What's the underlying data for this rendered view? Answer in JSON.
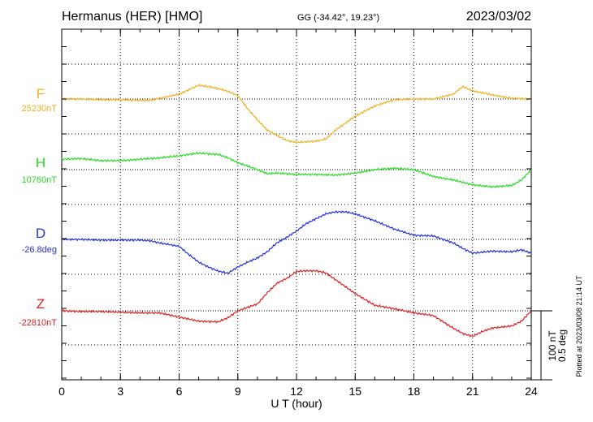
{
  "header": {
    "station": "Hermanus (HER)  [HMO]",
    "coords": "GG (-34.42°,  19.23°)",
    "date": "2023/03/02"
  },
  "side_note": "Plotted at 2023/03/08 21:14 UT",
  "scale_bar": {
    "value_nt": "100 nT",
    "value_deg": "0.5 deg"
  },
  "chart_data": {
    "type": "line",
    "title": "Hermanus (HER)  [HMO]",
    "xlabel": "U T (hour)",
    "xlim": [
      0,
      24
    ],
    "xticks": [
      "0",
      "3",
      "6",
      "9",
      "12",
      "15",
      "18",
      "21",
      "24"
    ],
    "grid": true,
    "scale": {
      "nt_per_bar": 100,
      "deg_per_bar": 0.5
    },
    "series": [
      {
        "name": "F",
        "baseline_label": "25230nT",
        "color": "#f0b020",
        "baseline_units": 0,
        "offset_units": 0,
        "points": [
          [
            0,
            0
          ],
          [
            1,
            0
          ],
          [
            2,
            1
          ],
          [
            3,
            1
          ],
          [
            4,
            2
          ],
          [
            4.5,
            2
          ],
          [
            5,
            -1
          ],
          [
            6,
            -7
          ],
          [
            7,
            -20
          ],
          [
            7.5,
            -18
          ],
          [
            8,
            -15
          ],
          [
            8.5,
            -11
          ],
          [
            9,
            -5
          ],
          [
            9.5,
            14
          ],
          [
            10,
            30
          ],
          [
            10.5,
            45
          ],
          [
            11,
            53
          ],
          [
            11.5,
            60
          ],
          [
            12,
            63
          ],
          [
            12.5,
            62
          ],
          [
            13,
            61
          ],
          [
            13.5,
            58
          ],
          [
            14,
            45
          ],
          [
            15,
            25
          ],
          [
            16,
            10
          ],
          [
            17,
            1
          ],
          [
            18,
            0
          ],
          [
            19,
            0
          ],
          [
            20,
            -7
          ],
          [
            20.5,
            -18
          ],
          [
            21,
            -12
          ],
          [
            22,
            -6
          ],
          [
            23,
            -1
          ],
          [
            24,
            0
          ]
        ]
      },
      {
        "name": "H",
        "baseline_label": "10760nT",
        "color": "#22dd22",
        "baseline_units": 0,
        "offset_units": 0,
        "points": [
          [
            0,
            -15
          ],
          [
            1,
            -16
          ],
          [
            2,
            -13
          ],
          [
            3,
            -13
          ],
          [
            4,
            -15
          ],
          [
            5,
            -17
          ],
          [
            6,
            -20
          ],
          [
            7,
            -24
          ],
          [
            8,
            -22
          ],
          [
            8.5,
            -17
          ],
          [
            9,
            -10
          ],
          [
            10,
            0
          ],
          [
            10.5,
            6
          ],
          [
            11,
            5
          ],
          [
            12,
            7
          ],
          [
            13,
            7
          ],
          [
            14,
            8
          ],
          [
            15,
            5
          ],
          [
            16,
            0
          ],
          [
            17,
            -2
          ],
          [
            18,
            0
          ],
          [
            19,
            10
          ],
          [
            20,
            15
          ],
          [
            21,
            22
          ],
          [
            22,
            25
          ],
          [
            23,
            23
          ],
          [
            23.5,
            15
          ],
          [
            24,
            0
          ]
        ]
      },
      {
        "name": "D",
        "baseline_label": "-26.8deg",
        "color": "#2233dd",
        "baseline_units": 0,
        "offset_units": 0,
        "points": [
          [
            0,
            0
          ],
          [
            1,
            0
          ],
          [
            2,
            1
          ],
          [
            3,
            1
          ],
          [
            4,
            1
          ],
          [
            4.5,
            2
          ],
          [
            5,
            5
          ],
          [
            6,
            10
          ],
          [
            6.5,
            22
          ],
          [
            7,
            33
          ],
          [
            7.5,
            40
          ],
          [
            8,
            46
          ],
          [
            8.5,
            49
          ],
          [
            9,
            40
          ],
          [
            9.5,
            33
          ],
          [
            10,
            27
          ],
          [
            10.5,
            18
          ],
          [
            11,
            5
          ],
          [
            11.5,
            -3
          ],
          [
            12,
            -12
          ],
          [
            12.5,
            -23
          ],
          [
            13,
            -30
          ],
          [
            13.5,
            -37
          ],
          [
            14,
            -40
          ],
          [
            14.5,
            -40
          ],
          [
            15,
            -37
          ],
          [
            16,
            -27
          ],
          [
            17,
            -15
          ],
          [
            18,
            -6
          ],
          [
            19,
            -5
          ],
          [
            20,
            5
          ],
          [
            20.5,
            13
          ],
          [
            21,
            20
          ],
          [
            22,
            17
          ],
          [
            23,
            18
          ],
          [
            23.5,
            15
          ],
          [
            24,
            20
          ]
        ]
      },
      {
        "name": "Z",
        "baseline_label": "-22810nT",
        "color": "#e02020",
        "baseline_units": 0,
        "offset_units": 0,
        "points": [
          [
            0,
            0
          ],
          [
            1,
            1
          ],
          [
            2,
            1
          ],
          [
            3,
            2
          ],
          [
            4,
            3
          ],
          [
            5,
            3
          ],
          [
            5.5,
            6
          ],
          [
            6,
            9
          ],
          [
            7,
            15
          ],
          [
            8,
            16
          ],
          [
            8.5,
            10
          ],
          [
            9,
            0
          ],
          [
            10,
            -10
          ],
          [
            10.5,
            -26
          ],
          [
            11,
            -40
          ],
          [
            11.5,
            -47
          ],
          [
            12,
            -57
          ],
          [
            12.5,
            -58
          ],
          [
            13,
            -58
          ],
          [
            13.5,
            -55
          ],
          [
            14,
            -45
          ],
          [
            15,
            -25
          ],
          [
            16,
            -8
          ],
          [
            17,
            -3
          ],
          [
            18,
            3
          ],
          [
            19,
            7
          ],
          [
            19.5,
            16
          ],
          [
            20,
            25
          ],
          [
            20.5,
            33
          ],
          [
            21,
            37
          ],
          [
            21.5,
            30
          ],
          [
            22,
            25
          ],
          [
            23,
            22
          ],
          [
            23.5,
            15
          ],
          [
            24,
            0
          ]
        ]
      }
    ]
  }
}
